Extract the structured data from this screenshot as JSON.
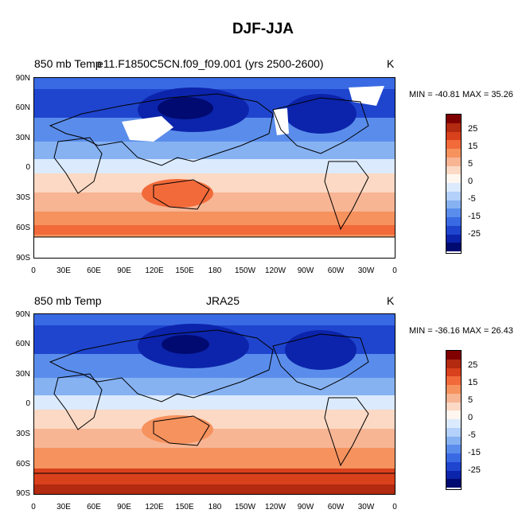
{
  "title": "DJF-JJA",
  "panels": [
    {
      "left_label": "850 mb Temp",
      "center_label": "e11.F1850C5CN.f09_f09.001 (yrs 2500-2600)",
      "right_label": "K",
      "stats": "MIN = -40.81 MAX =  35.26"
    },
    {
      "left_label": "850 mb Temp",
      "center_label": "JRA25",
      "right_label": "K",
      "stats": "MIN = -36.16 MAX =  26.43"
    }
  ],
  "lat_ticks": [
    "90N",
    "60N",
    "30N",
    "0",
    "30S",
    "60S",
    "90S"
  ],
  "lon_ticks": [
    "0",
    "30E",
    "60E",
    "90E",
    "120E",
    "150E",
    "180",
    "150W",
    "120W",
    "90W",
    "60W",
    "30W",
    "0"
  ],
  "colorbar": {
    "labels": [
      "25",
      "15",
      "5",
      "-5",
      "-15",
      "-25"
    ],
    "zero_label": "0",
    "colors": [
      "#800000",
      "#b22a10",
      "#d9401c",
      "#f26a3a",
      "#f6925e",
      "#f7b594",
      "#fbd9c4",
      "#fff6ef",
      "#dbeafd",
      "#b3d1fa",
      "#86b2f2",
      "#5a8deb",
      "#3a6ae3",
      "#1f45cf",
      "#0c24ab",
      "#000a70"
    ]
  },
  "colors": {
    "deep_warm": "#c4361a",
    "warm": "#f07552",
    "light_warm": "#f6a583",
    "pale_warm": "#fbd5c0",
    "neutral": "#eef4fd",
    "pale_cool": "#c6dcfa",
    "cool": "#8cb6f1",
    "mid_cool": "#5d8fe8",
    "strong_cool": "#3465dc",
    "deep_cool": "#1a3dc4",
    "darkest_cool": "#0a1e93"
  }
}
